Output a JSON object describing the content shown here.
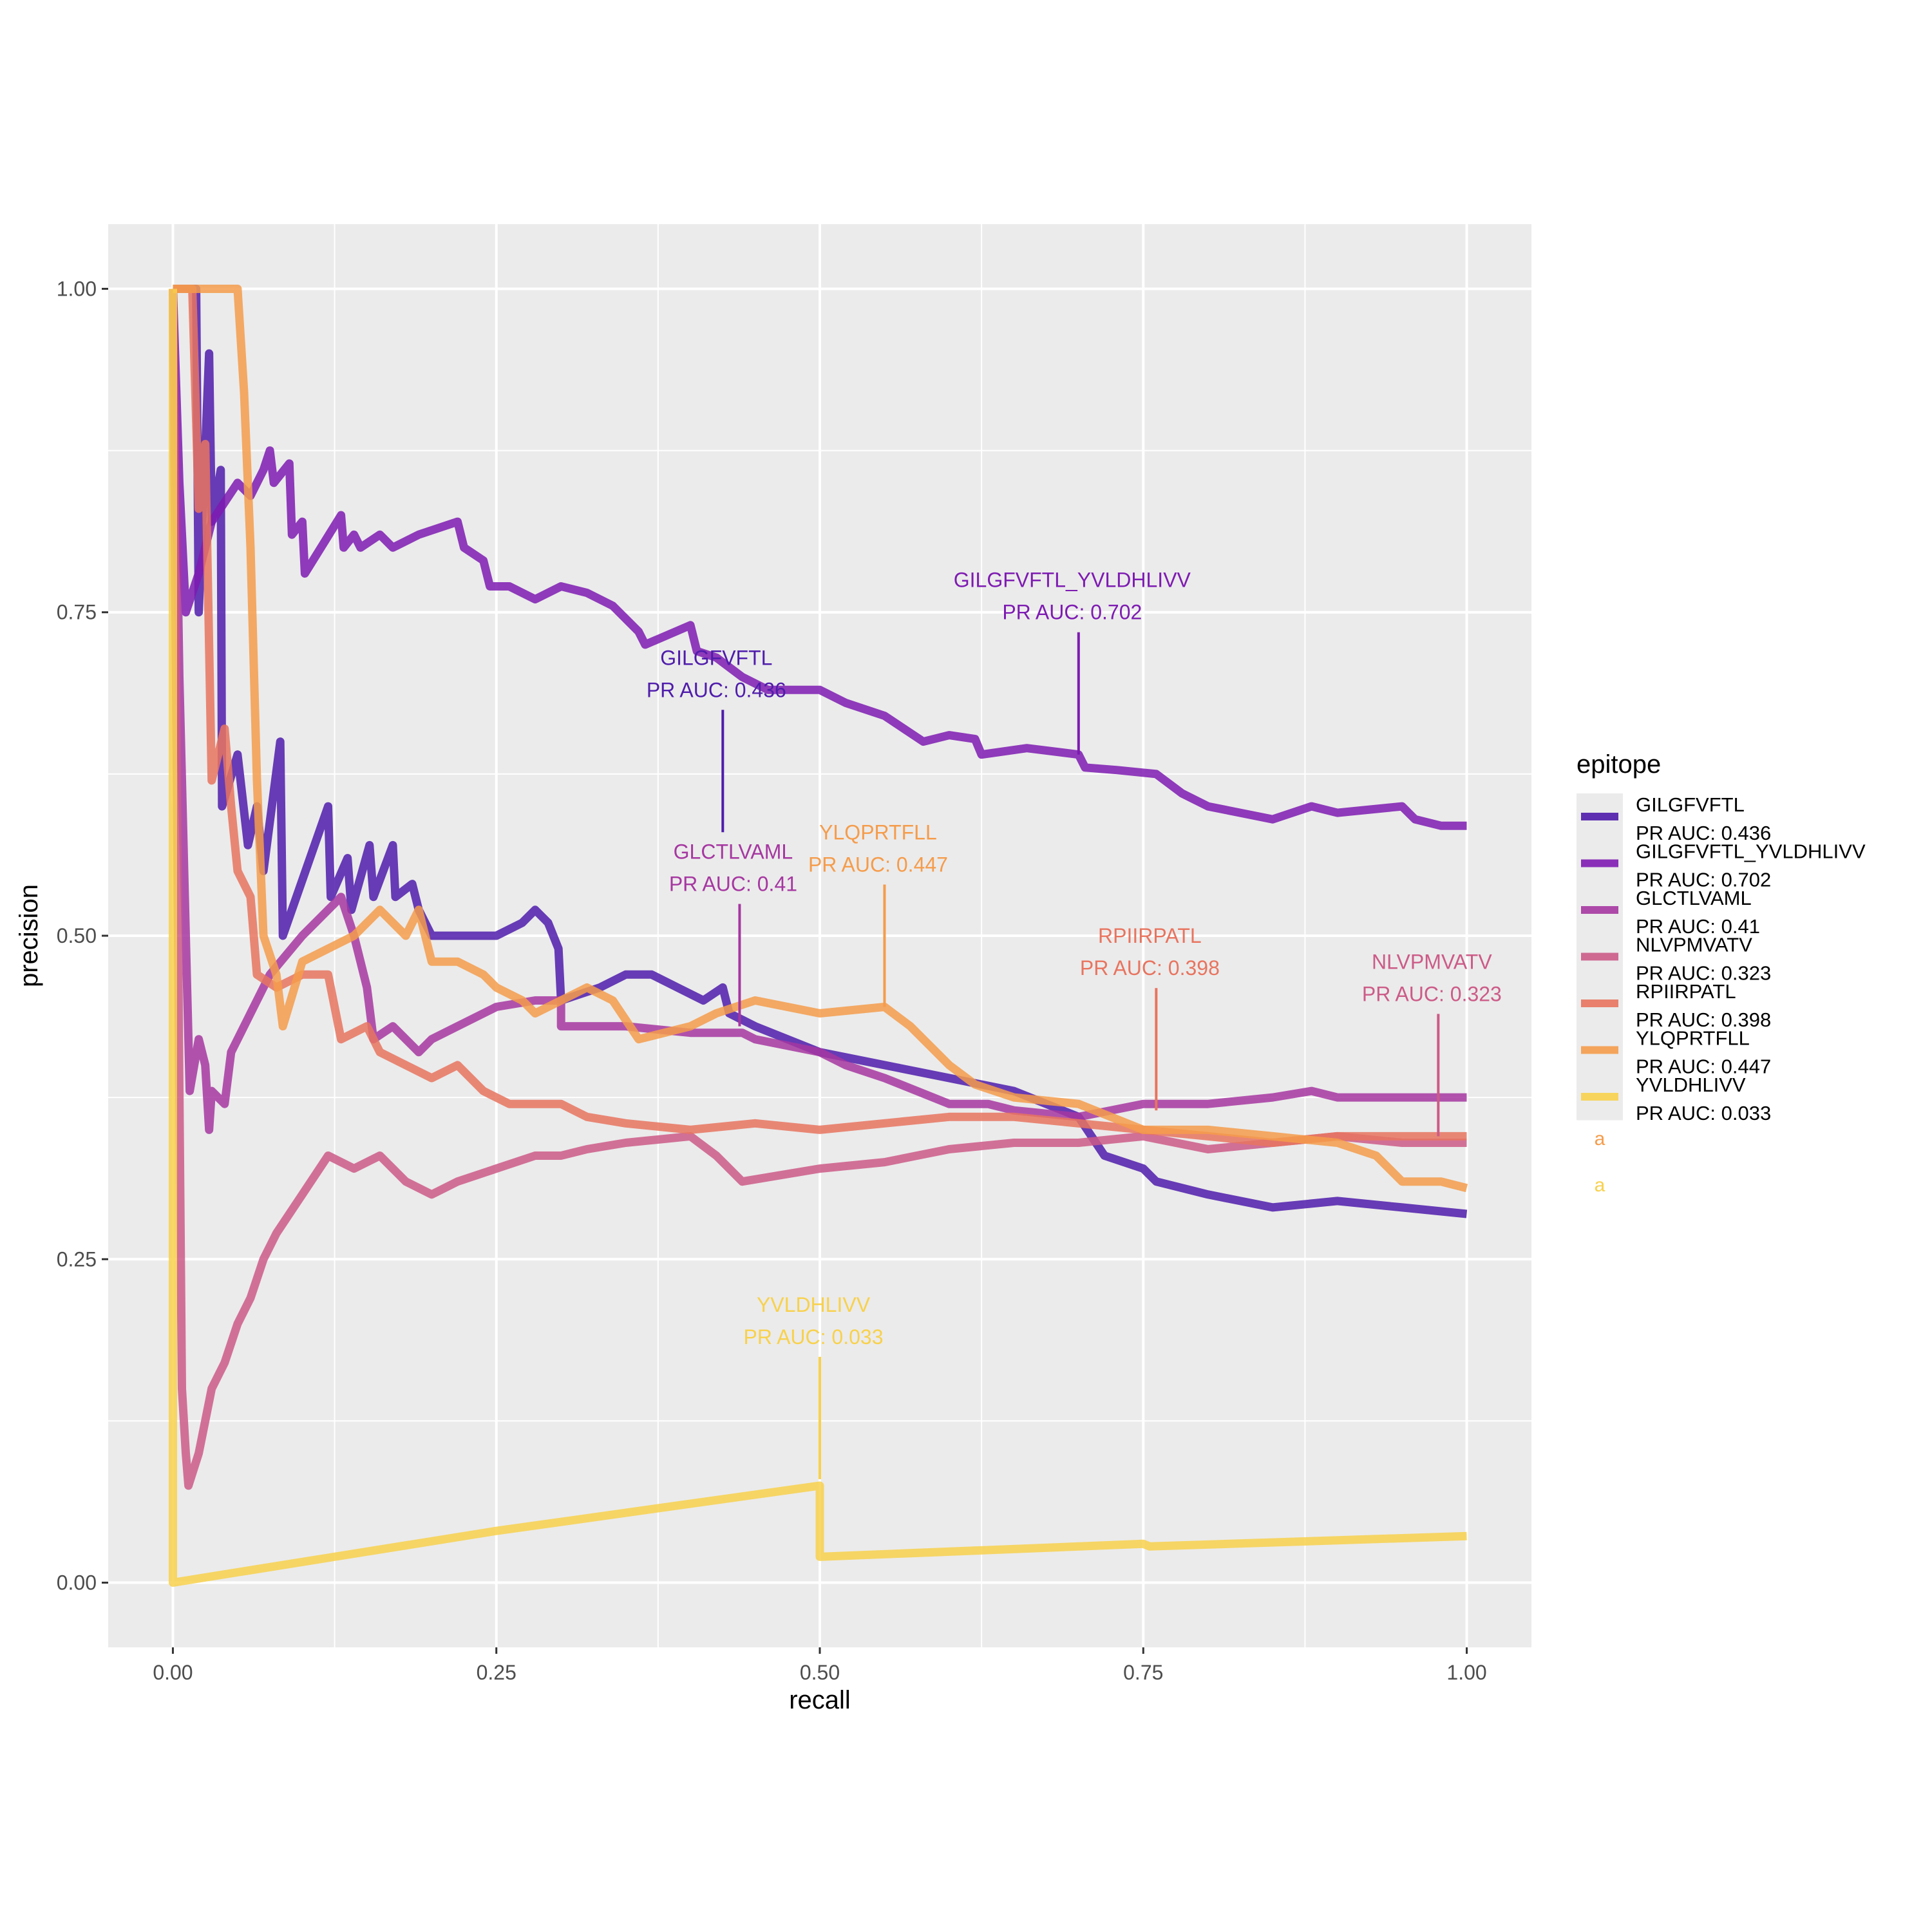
{
  "chart_data": {
    "type": "line",
    "title": "",
    "xlabel": "recall",
    "ylabel": "precision",
    "xlim": [
      -0.05,
      1.05
    ],
    "ylim": [
      -0.05,
      1.05
    ],
    "x_ticks": [
      0,
      0.25,
      0.5,
      0.75,
      1.0
    ],
    "x_tick_labels": [
      "0.00",
      "0.25",
      "0.50",
      "0.75",
      "1.00"
    ],
    "y_ticks": [
      0,
      0.25,
      0.5,
      0.75,
      1.0
    ],
    "y_tick_labels": [
      "0.00",
      "0.25",
      "0.50",
      "0.75",
      "1.00"
    ],
    "grid": true,
    "legend": {
      "title": "epitope",
      "placement": "right",
      "extra_marks": [
        {
          "text": "a",
          "color": "#F59C4B"
        },
        {
          "text": "a",
          "color": "#F8D14C"
        }
      ]
    },
    "series": [
      {
        "name": "GILGFVFTL",
        "legend_line2": "PR AUC: 0.436",
        "color": "#4F1CAB",
        "label": {
          "line1": "GILGFVFTL",
          "line2": "PR AUC: 0.436",
          "x": 0.425,
          "y": 0.58
        },
        "points": [
          [
            0,
            1.0
          ],
          [
            0.018,
            1.0
          ],
          [
            0.02,
            0.75
          ],
          [
            0.028,
            0.95
          ],
          [
            0.03,
            0.82
          ],
          [
            0.037,
            0.86
          ],
          [
            0.038,
            0.6
          ],
          [
            0.05,
            0.64
          ],
          [
            0.058,
            0.57
          ],
          [
            0.065,
            0.6
          ],
          [
            0.07,
            0.55
          ],
          [
            0.083,
            0.65
          ],
          [
            0.085,
            0.5
          ],
          [
            0.12,
            0.6
          ],
          [
            0.122,
            0.53
          ],
          [
            0.135,
            0.56
          ],
          [
            0.138,
            0.52
          ],
          [
            0.152,
            0.57
          ],
          [
            0.155,
            0.53
          ],
          [
            0.17,
            0.57
          ],
          [
            0.172,
            0.53
          ],
          [
            0.185,
            0.54
          ],
          [
            0.19,
            0.52
          ],
          [
            0.2,
            0.5
          ],
          [
            0.205,
            0.5
          ],
          [
            0.22,
            0.5
          ],
          [
            0.25,
            0.5
          ],
          [
            0.27,
            0.51
          ],
          [
            0.28,
            0.52
          ],
          [
            0.29,
            0.51
          ],
          [
            0.298,
            0.49
          ],
          [
            0.3,
            0.45
          ],
          [
            0.33,
            0.46
          ],
          [
            0.35,
            0.47
          ],
          [
            0.37,
            0.47
          ],
          [
            0.39,
            0.46
          ],
          [
            0.41,
            0.45
          ],
          [
            0.425,
            0.46
          ],
          [
            0.43,
            0.44
          ],
          [
            0.45,
            0.43
          ],
          [
            0.5,
            0.41
          ],
          [
            0.55,
            0.4
          ],
          [
            0.6,
            0.39
          ],
          [
            0.65,
            0.38
          ],
          [
            0.7,
            0.36
          ],
          [
            0.72,
            0.33
          ],
          [
            0.75,
            0.32
          ],
          [
            0.76,
            0.31
          ],
          [
            0.8,
            0.3
          ],
          [
            0.85,
            0.29
          ],
          [
            0.9,
            0.295
          ],
          [
            0.95,
            0.29
          ],
          [
            1.0,
            0.285
          ]
        ]
      },
      {
        "name": "GILGFVFTL_YVLDHLIVV",
        "legend_line2": "PR AUC: 0.702",
        "color": "#7E1BB2",
        "label": {
          "line1": "GILGFVFTL_YVLDHLIVV",
          "line2": "PR AUC: 0.702",
          "x": 0.7,
          "y": 0.64
        },
        "points": [
          [
            0,
            1.0
          ],
          [
            0.005,
            0.85
          ],
          [
            0.01,
            0.75
          ],
          [
            0.02,
            0.78
          ],
          [
            0.03,
            0.82
          ],
          [
            0.05,
            0.85
          ],
          [
            0.06,
            0.84
          ],
          [
            0.07,
            0.86
          ],
          [
            0.075,
            0.875
          ],
          [
            0.078,
            0.85
          ],
          [
            0.09,
            0.865
          ],
          [
            0.092,
            0.81
          ],
          [
            0.1,
            0.82
          ],
          [
            0.102,
            0.78
          ],
          [
            0.13,
            0.825
          ],
          [
            0.132,
            0.8
          ],
          [
            0.14,
            0.81
          ],
          [
            0.145,
            0.8
          ],
          [
            0.16,
            0.81
          ],
          [
            0.17,
            0.8
          ],
          [
            0.19,
            0.81
          ],
          [
            0.22,
            0.82
          ],
          [
            0.225,
            0.8
          ],
          [
            0.24,
            0.79
          ],
          [
            0.245,
            0.77
          ],
          [
            0.26,
            0.77
          ],
          [
            0.28,
            0.76
          ],
          [
            0.3,
            0.77
          ],
          [
            0.32,
            0.765
          ],
          [
            0.34,
            0.755
          ],
          [
            0.36,
            0.735
          ],
          [
            0.365,
            0.725
          ],
          [
            0.4,
            0.74
          ],
          [
            0.405,
            0.72
          ],
          [
            0.42,
            0.715
          ],
          [
            0.44,
            0.7
          ],
          [
            0.46,
            0.69
          ],
          [
            0.5,
            0.69
          ],
          [
            0.52,
            0.68
          ],
          [
            0.55,
            0.67
          ],
          [
            0.58,
            0.65
          ],
          [
            0.6,
            0.655
          ],
          [
            0.62,
            0.652
          ],
          [
            0.625,
            0.64
          ],
          [
            0.66,
            0.645
          ],
          [
            0.7,
            0.64
          ],
          [
            0.705,
            0.63
          ],
          [
            0.73,
            0.628
          ],
          [
            0.76,
            0.625
          ],
          [
            0.78,
            0.61
          ],
          [
            0.8,
            0.6
          ],
          [
            0.85,
            0.59
          ],
          [
            0.88,
            0.6
          ],
          [
            0.9,
            0.595
          ],
          [
            0.95,
            0.6
          ],
          [
            0.96,
            0.59
          ],
          [
            0.98,
            0.585
          ],
          [
            1.0,
            0.585
          ]
        ]
      },
      {
        "name": "GLCTLVAML",
        "legend_line2": "PR AUC: 0.41",
        "color": "#A637A1",
        "label": {
          "line1": "GLCTLVAML",
          "line2": "PR AUC: 0.41",
          "x": 0.438,
          "y": 0.43
        },
        "points": [
          [
            0,
            1.0
          ],
          [
            0.005,
            0.7
          ],
          [
            0.01,
            0.5
          ],
          [
            0.013,
            0.38
          ],
          [
            0.02,
            0.42
          ],
          [
            0.025,
            0.4
          ],
          [
            0.028,
            0.35
          ],
          [
            0.03,
            0.38
          ],
          [
            0.04,
            0.37
          ],
          [
            0.045,
            0.41
          ],
          [
            0.06,
            0.44
          ],
          [
            0.075,
            0.47
          ],
          [
            0.1,
            0.5
          ],
          [
            0.12,
            0.52
          ],
          [
            0.13,
            0.53
          ],
          [
            0.14,
            0.5
          ],
          [
            0.15,
            0.46
          ],
          [
            0.155,
            0.42
          ],
          [
            0.17,
            0.43
          ],
          [
            0.19,
            0.41
          ],
          [
            0.2,
            0.42
          ],
          [
            0.22,
            0.43
          ],
          [
            0.25,
            0.445
          ],
          [
            0.28,
            0.45
          ],
          [
            0.3,
            0.45
          ],
          [
            0.3,
            0.43
          ],
          [
            0.33,
            0.43
          ],
          [
            0.35,
            0.43
          ],
          [
            0.4,
            0.425
          ],
          [
            0.44,
            0.425
          ],
          [
            0.45,
            0.42
          ],
          [
            0.5,
            0.41
          ],
          [
            0.52,
            0.4
          ],
          [
            0.55,
            0.39
          ],
          [
            0.6,
            0.37
          ],
          [
            0.63,
            0.37
          ],
          [
            0.65,
            0.365
          ],
          [
            0.7,
            0.36
          ],
          [
            0.75,
            0.37
          ],
          [
            0.8,
            0.37
          ],
          [
            0.85,
            0.375
          ],
          [
            0.88,
            0.38
          ],
          [
            0.9,
            0.375
          ],
          [
            0.95,
            0.375
          ],
          [
            1.0,
            0.375
          ]
        ]
      },
      {
        "name": "NLVPMVATV",
        "legend_line2": "PR AUC: 0.323",
        "color": "#CC5B87",
        "label": {
          "line1": "NLVPMVATV",
          "line2": "PR AUC: 0.323",
          "x": 0.978,
          "y": 0.345
        },
        "points": [
          [
            0,
            1.0
          ],
          [
            0.004,
            0.5
          ],
          [
            0.007,
            0.15
          ],
          [
            0.01,
            0.1
          ],
          [
            0.012,
            0.075
          ],
          [
            0.02,
            0.1
          ],
          [
            0.03,
            0.15
          ],
          [
            0.04,
            0.17
          ],
          [
            0.05,
            0.2
          ],
          [
            0.06,
            0.22
          ],
          [
            0.07,
            0.25
          ],
          [
            0.08,
            0.27
          ],
          [
            0.1,
            0.3
          ],
          [
            0.12,
            0.33
          ],
          [
            0.14,
            0.32
          ],
          [
            0.16,
            0.33
          ],
          [
            0.18,
            0.31
          ],
          [
            0.2,
            0.3
          ],
          [
            0.22,
            0.31
          ],
          [
            0.25,
            0.32
          ],
          [
            0.28,
            0.33
          ],
          [
            0.3,
            0.33
          ],
          [
            0.32,
            0.335
          ],
          [
            0.35,
            0.34
          ],
          [
            0.4,
            0.345
          ],
          [
            0.42,
            0.33
          ],
          [
            0.44,
            0.31
          ],
          [
            0.5,
            0.32
          ],
          [
            0.55,
            0.325
          ],
          [
            0.6,
            0.335
          ],
          [
            0.65,
            0.34
          ],
          [
            0.7,
            0.34
          ],
          [
            0.75,
            0.345
          ],
          [
            0.8,
            0.335
          ],
          [
            0.85,
            0.34
          ],
          [
            0.9,
            0.345
          ],
          [
            0.95,
            0.34
          ],
          [
            1.0,
            0.34
          ]
        ]
      },
      {
        "name": "RPIIRPATL",
        "legend_line2": "PR AUC: 0.398",
        "color": "#E8745F",
        "label": {
          "line1": "RPIIRPATL",
          "line2": "PR AUC: 0.398",
          "x": 0.76,
          "y": 0.365
        },
        "points": [
          [
            0,
            1.0
          ],
          [
            0.015,
            1.0
          ],
          [
            0.02,
            0.83
          ],
          [
            0.025,
            0.88
          ],
          [
            0.03,
            0.62
          ],
          [
            0.04,
            0.66
          ],
          [
            0.045,
            0.6
          ],
          [
            0.05,
            0.55
          ],
          [
            0.06,
            0.53
          ],
          [
            0.065,
            0.47
          ],
          [
            0.08,
            0.46
          ],
          [
            0.1,
            0.47
          ],
          [
            0.12,
            0.47
          ],
          [
            0.13,
            0.42
          ],
          [
            0.15,
            0.43
          ],
          [
            0.16,
            0.41
          ],
          [
            0.18,
            0.4
          ],
          [
            0.2,
            0.39
          ],
          [
            0.22,
            0.4
          ],
          [
            0.24,
            0.38
          ],
          [
            0.26,
            0.37
          ],
          [
            0.3,
            0.37
          ],
          [
            0.32,
            0.36
          ],
          [
            0.35,
            0.355
          ],
          [
            0.4,
            0.35
          ],
          [
            0.45,
            0.355
          ],
          [
            0.5,
            0.35
          ],
          [
            0.55,
            0.355
          ],
          [
            0.6,
            0.36
          ],
          [
            0.65,
            0.36
          ],
          [
            0.7,
            0.355
          ],
          [
            0.75,
            0.35
          ],
          [
            0.8,
            0.345
          ],
          [
            0.85,
            0.34
          ],
          [
            0.9,
            0.345
          ],
          [
            0.95,
            0.345
          ],
          [
            1.0,
            0.345
          ]
        ]
      },
      {
        "name": "YLQPRTFLL",
        "legend_line2": "PR AUC: 0.447",
        "color": "#F59C4B",
        "label": {
          "line1": "YLQPRTFLL",
          "line2": "PR AUC: 0.447",
          "x": 0.55,
          "y": 0.445
        },
        "points": [
          [
            0,
            1.0
          ],
          [
            0.005,
            1.0
          ],
          [
            0.05,
            1.0
          ],
          [
            0.055,
            0.92
          ],
          [
            0.06,
            0.8
          ],
          [
            0.065,
            0.62
          ],
          [
            0.07,
            0.5
          ],
          [
            0.08,
            0.47
          ],
          [
            0.085,
            0.43
          ],
          [
            0.1,
            0.48
          ],
          [
            0.12,
            0.49
          ],
          [
            0.14,
            0.5
          ],
          [
            0.16,
            0.52
          ],
          [
            0.18,
            0.5
          ],
          [
            0.19,
            0.52
          ],
          [
            0.2,
            0.48
          ],
          [
            0.22,
            0.48
          ],
          [
            0.24,
            0.47
          ],
          [
            0.25,
            0.46
          ],
          [
            0.27,
            0.45
          ],
          [
            0.28,
            0.44
          ],
          [
            0.3,
            0.45
          ],
          [
            0.32,
            0.46
          ],
          [
            0.34,
            0.45
          ],
          [
            0.36,
            0.42
          ],
          [
            0.4,
            0.43
          ],
          [
            0.42,
            0.44
          ],
          [
            0.45,
            0.45
          ],
          [
            0.5,
            0.44
          ],
          [
            0.55,
            0.445
          ],
          [
            0.57,
            0.43
          ],
          [
            0.6,
            0.4
          ],
          [
            0.62,
            0.385
          ],
          [
            0.65,
            0.375
          ],
          [
            0.7,
            0.37
          ],
          [
            0.75,
            0.35
          ],
          [
            0.8,
            0.35
          ],
          [
            0.85,
            0.345
          ],
          [
            0.9,
            0.34
          ],
          [
            0.93,
            0.33
          ],
          [
            0.95,
            0.31
          ],
          [
            0.98,
            0.31
          ],
          [
            1.0,
            0.305
          ]
        ]
      },
      {
        "name": "YVLDHLIVV",
        "legend_line2": "PR AUC: 0.033",
        "color": "#F8D14C",
        "label": {
          "line1": "YVLDHLIVV",
          "line2": "PR AUC: 0.033",
          "x": 0.5,
          "y": 0.08
        },
        "points": [
          [
            0,
            1.0
          ],
          [
            0,
            0
          ],
          [
            0.25,
            0.04
          ],
          [
            0.5,
            0.075
          ],
          [
            0.5,
            0.02
          ],
          [
            0.75,
            0.03
          ],
          [
            0.755,
            0.028
          ],
          [
            1.0,
            0.036
          ]
        ]
      }
    ]
  }
}
